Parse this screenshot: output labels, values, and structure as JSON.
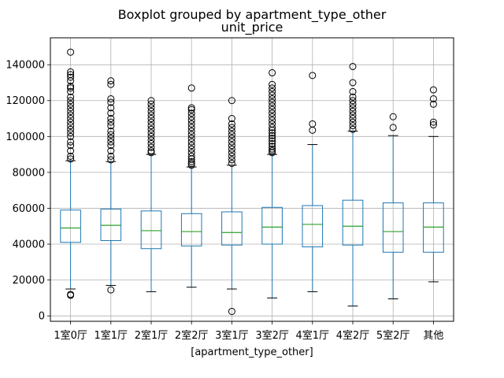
{
  "chart_data": {
    "type": "boxplot",
    "title": "Boxplot grouped by apartment_type_other",
    "subtitle": "unit_price",
    "xlabel": "[apartment_type_other]",
    "ylabel": "",
    "ylim": [
      -3000,
      155000
    ],
    "yticks": [
      0,
      20000,
      40000,
      60000,
      80000,
      100000,
      120000,
      140000
    ],
    "ytick_labels": [
      "0",
      "20000",
      "40000",
      "60000",
      "80000",
      "100000",
      "120000",
      "140000"
    ],
    "grid": true,
    "colors": {
      "box": "#1f77b4",
      "median": "#2ca02c",
      "cap": "#000000",
      "flier": "#000000",
      "grid": "#b0b0b0"
    },
    "categories": [
      "1室0厅",
      "1室1厅",
      "2室1厅",
      "2室2厅",
      "3室1厅",
      "3室2厅",
      "4室1厅",
      "4室2厅",
      "5室2厅",
      "其他"
    ],
    "boxes": [
      {
        "whislo": 15000,
        "q1": 41000,
        "med": 49000,
        "q3": 59000,
        "whishi": 86500,
        "fliers": [
          11500,
          12000,
          87500,
          89000,
          92000,
          95000,
          97000,
          100000,
          102000,
          104000,
          106000,
          108000,
          110000,
          112000,
          114000,
          116000,
          118000,
          120000,
          122000,
          125000,
          127000,
          128000,
          131000,
          133000,
          134500,
          136000,
          147000
        ]
      },
      {
        "whislo": 17000,
        "q1": 42000,
        "med": 50500,
        "q3": 59500,
        "whishi": 86000,
        "fliers": [
          14500,
          87000,
          89000,
          92000,
          95000,
          97000,
          99000,
          101000,
          103000,
          106000,
          108000,
          110000,
          113000,
          116000,
          119000,
          121000,
          129000,
          131000
        ]
      },
      {
        "whislo": 13500,
        "q1": 37500,
        "med": 47500,
        "q3": 58500,
        "whishi": 90000,
        "fliers": [
          91000,
          92000,
          94000,
          96000,
          98000,
          100000,
          102000,
          104000,
          106000,
          108000,
          110000,
          112000,
          114000,
          116000,
          118000,
          120000
        ]
      },
      {
        "whislo": 16000,
        "q1": 39000,
        "med": 47000,
        "q3": 57000,
        "whishi": 83000,
        "fliers": [
          84000,
          85000,
          86000,
          87500,
          89000,
          91000,
          93000,
          95000,
          97000,
          99000,
          101000,
          103000,
          105000,
          107000,
          109000,
          111000,
          113000,
          115000,
          116000,
          127000
        ]
      },
      {
        "whislo": 15000,
        "q1": 39500,
        "med": 46500,
        "q3": 58000,
        "whishi": 84000,
        "fliers": [
          2500,
          85000,
          87000,
          89000,
          91000,
          93000,
          95000,
          97000,
          99000,
          101000,
          103000,
          105000,
          107000,
          110000,
          120000
        ]
      },
      {
        "whislo": 10000,
        "q1": 40000,
        "med": 49500,
        "q3": 60500,
        "whishi": 90000,
        "fliers": [
          91000,
          92000,
          93000,
          94500,
          96000,
          97500,
          99000,
          100500,
          102000,
          103500,
          105000,
          107000,
          109000,
          111000,
          113000,
          115000,
          117000,
          119000,
          121000,
          123000,
          125000,
          127000,
          129000,
          135500
        ]
      },
      {
        "whislo": 13500,
        "q1": 38500,
        "med": 51000,
        "q3": 61500,
        "whishi": 95500,
        "fliers": [
          103500,
          107000,
          134000
        ]
      },
      {
        "whislo": 5500,
        "q1": 39500,
        "med": 50000,
        "q3": 64500,
        "whishi": 103000,
        "fliers": [
          104000,
          106000,
          108000,
          110000,
          112000,
          114000,
          116000,
          118000,
          120000,
          122000,
          125000,
          130000,
          139000
        ]
      },
      {
        "whislo": 9500,
        "q1": 35500,
        "med": 47000,
        "q3": 63000,
        "whishi": 100500,
        "fliers": [
          105000,
          111000
        ]
      },
      {
        "whislo": 19000,
        "q1": 35500,
        "med": 49500,
        "q3": 63000,
        "whishi": 100000,
        "fliers": [
          106500,
          108000,
          118000,
          121000,
          126000
        ]
      }
    ]
  }
}
